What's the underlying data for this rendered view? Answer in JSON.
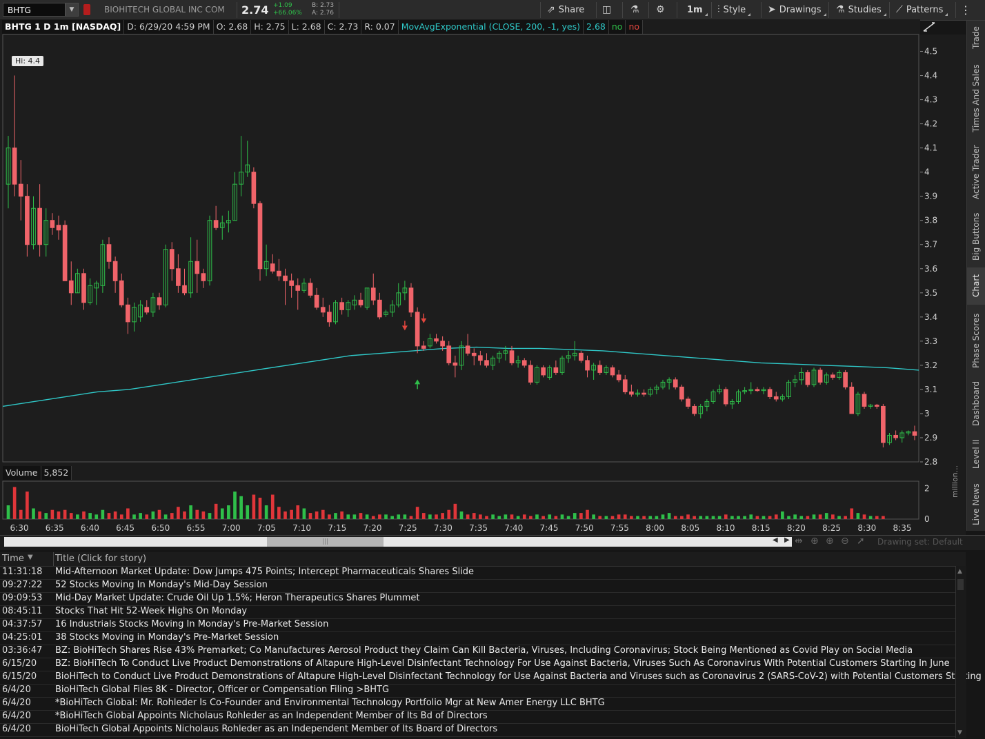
{
  "toolbar": {
    "symbol": "BHTG",
    "company": "BIOHITECH GLOBAL INC COM",
    "last": "2.74",
    "net_change": "+1.09",
    "pct_change": "+66.06%",
    "bid": "B: 2.73",
    "ask": "A: 2.76",
    "share": "Share",
    "timeframe": "1m",
    "style": "Style",
    "drawings": "Drawings",
    "studies": "Studies",
    "patterns": "Patterns"
  },
  "chart_header": {
    "symbol": "BHTG 1 D 1m [NASDAQ]",
    "date": "D: 6/29/20 4:59 PM",
    "open": "O: 2.68",
    "high": "H: 2.75",
    "low": "L: 2.68",
    "close": "C: 2.73",
    "range": "R: 0.07",
    "study": "MovAvgExponential (CLOSE, 200, -1, yes)",
    "study_value": "2.68",
    "flag1": "no",
    "flag2": "no",
    "hi_label": "Hi: 4.4"
  },
  "volume_header": {
    "label": "Volume",
    "value": "5,852",
    "unit": "million...",
    "ticks": [
      "2",
      "0"
    ]
  },
  "side_tabs": [
    "Trade",
    "Times And Sales",
    "Active Trader",
    "Big Buttons",
    "Chart",
    "Phase Scores",
    "Dashboard",
    "Level II",
    "Live News"
  ],
  "scroll": {
    "drawing_set": "Drawing set: Default"
  },
  "news": {
    "col_time": "Time",
    "col_title": "Title (Click for story)",
    "rows": [
      {
        "time": "11:31:18",
        "title": "Mid-Afternoon Market Update: Dow Jumps 475 Points; Intercept Pharmaceuticals Shares Slide"
      },
      {
        "time": "09:27:22",
        "title": "52 Stocks Moving In Monday's Mid-Day Session"
      },
      {
        "time": "09:09:53",
        "title": "Mid-Day Market Update: Crude Oil Up 1.5%; Heron Therapeutics Shares Plummet"
      },
      {
        "time": "08:45:11",
        "title": "Stocks That Hit 52-Week Highs On Monday"
      },
      {
        "time": "04:37:57",
        "title": "16 Industrials Stocks Moving In Monday's Pre-Market Session"
      },
      {
        "time": "04:25:01",
        "title": "38 Stocks Moving in Monday's Pre-Market Session"
      },
      {
        "time": "03:36:47",
        "title": "BZ: BioHiTech Shares Rise 43% Premarket; Co Manufactures Aerosol Product they Claim Can Kill Bacteria, Viruses, Including Coronavirus; Stock Being Mentioned as Covid Play on Social Media"
      },
      {
        "time": "6/15/20",
        "title": "BZ: BioHiTech To Conduct Live Product Demonstrations of Altapure High-Level Disinfectant Technology For Use Against Bacteria, Viruses Such As Coronavirus With Potential Customers Starting In June"
      },
      {
        "time": "6/15/20",
        "title": "BioHiTech to Conduct Live Product Demonstrations of Altapure High-Level Disinfectant Technology for Use Against Bacteria and Viruses such as Coronavirus 2 (SARS-CoV-2) with Potential Customers Starting in June"
      },
      {
        "time": "6/4/20",
        "title": "BioHiTech Global Files 8K - Director, Officer or Compensation Filing >BHTG"
      },
      {
        "time": "6/4/20",
        "title": "*BioHiTech Global: Mr. Rohleder Is Co-Founder and Environmental Technology Portfolio Mgr at New Amer Energy LLC  BHTG"
      },
      {
        "time": "6/4/20",
        "title": "*BioHiTech Global Appoints Nicholaus Rohleder as an Independent Member of Its Bd of Directors"
      },
      {
        "time": "6/4/20",
        "title": "BioHiTech Global Appoints Nicholaus Rohleder as an Independent Member of Its Board of Directors"
      }
    ]
  },
  "colors": {
    "up": "#2fbf4a",
    "down": "#f0646a",
    "ema": "#2fc8c8",
    "volume_up": "#2fbf4a",
    "volume_down": "#e0363a"
  },
  "chart_data": {
    "type": "candlestick",
    "interval": "1m",
    "x_ticks": [
      "6:30",
      "6:35",
      "6:40",
      "6:45",
      "6:50",
      "6:55",
      "7:00",
      "7:05",
      "7:10",
      "7:15",
      "7:20",
      "7:25",
      "7:30",
      "7:35",
      "7:40",
      "7:45",
      "7:50",
      "7:55",
      "8:00",
      "8:05",
      "8:10",
      "8:15",
      "8:20",
      "8:25",
      "8:30",
      "8:35"
    ],
    "y_ticks": [
      4.5,
      4.4,
      4.3,
      4.2,
      4.1,
      4,
      3.9,
      3.8,
      3.7,
      3.6,
      3.5,
      3.4,
      3.3,
      3.2,
      3.1,
      3,
      2.9,
      2.8
    ],
    "ylim": [
      2.8,
      4.57
    ],
    "high_marker": 4.4,
    "ohlc": [
      [
        3.95,
        4.15,
        3.85,
        4.1
      ],
      [
        4.1,
        4.4,
        3.9,
        3.95
      ],
      [
        3.95,
        4.05,
        3.8,
        3.9
      ],
      [
        3.9,
        3.95,
        3.65,
        3.7
      ],
      [
        3.7,
        3.9,
        3.68,
        3.85
      ],
      [
        3.85,
        3.95,
        3.65,
        3.7
      ],
      [
        3.7,
        3.85,
        3.65,
        3.8
      ],
      [
        3.8,
        3.83,
        3.74,
        3.77
      ],
      [
        3.78,
        3.82,
        3.72,
        3.76
      ],
      [
        3.78,
        3.8,
        3.55,
        3.55
      ],
      [
        3.55,
        3.63,
        3.45,
        3.5
      ],
      [
        3.5,
        3.6,
        3.5,
        3.58
      ],
      [
        3.58,
        3.6,
        3.43,
        3.46
      ],
      [
        3.46,
        3.56,
        3.45,
        3.53
      ],
      [
        3.52,
        3.55,
        3.45,
        3.54
      ],
      [
        3.53,
        3.72,
        3.5,
        3.7
      ],
      [
        3.7,
        3.73,
        3.6,
        3.63
      ],
      [
        3.63,
        3.65,
        3.5,
        3.55
      ],
      [
        3.55,
        3.58,
        3.44,
        3.45
      ],
      [
        3.45,
        3.48,
        3.33,
        3.38
      ],
      [
        3.38,
        3.46,
        3.34,
        3.44
      ],
      [
        3.4,
        3.47,
        3.38,
        3.45
      ],
      [
        3.44,
        3.47,
        3.41,
        3.42
      ],
      [
        3.42,
        3.5,
        3.4,
        3.48
      ],
      [
        3.48,
        3.5,
        3.43,
        3.45
      ],
      [
        3.45,
        3.7,
        3.44,
        3.68
      ],
      [
        3.68,
        3.71,
        3.55,
        3.6
      ],
      [
        3.6,
        3.66,
        3.5,
        3.53
      ],
      [
        3.53,
        3.6,
        3.49,
        3.5
      ],
      [
        3.5,
        3.73,
        3.48,
        3.63
      ],
      [
        3.63,
        3.72,
        3.5,
        3.58
      ],
      [
        3.58,
        3.6,
        3.52,
        3.55
      ],
      [
        3.55,
        3.82,
        3.53,
        3.8
      ],
      [
        3.8,
        3.86,
        3.76,
        3.77
      ],
      [
        3.77,
        3.82,
        3.72,
        3.79
      ],
      [
        3.79,
        3.84,
        3.75,
        3.8
      ],
      [
        3.8,
        4.0,
        3.8,
        3.95
      ],
      [
        3.95,
        4.15,
        3.9,
        4.0
      ],
      [
        4.0,
        4.13,
        3.98,
        4.03
      ],
      [
        4.0,
        4.02,
        3.85,
        3.87
      ],
      [
        3.87,
        3.88,
        3.55,
        3.6
      ],
      [
        3.6,
        3.7,
        3.57,
        3.63
      ],
      [
        3.62,
        3.66,
        3.58,
        3.59
      ],
      [
        3.59,
        3.64,
        3.55,
        3.57
      ],
      [
        3.57,
        3.6,
        3.45,
        3.55
      ],
      [
        3.55,
        3.58,
        3.48,
        3.53
      ],
      [
        3.53,
        3.56,
        3.43,
        3.51
      ],
      [
        3.51,
        3.56,
        3.5,
        3.54
      ],
      [
        3.54,
        3.56,
        3.48,
        3.49
      ],
      [
        3.49,
        3.52,
        3.43,
        3.44
      ],
      [
        3.44,
        3.48,
        3.4,
        3.42
      ],
      [
        3.42,
        3.45,
        3.36,
        3.38
      ],
      [
        3.38,
        3.47,
        3.37,
        3.46
      ],
      [
        3.46,
        3.48,
        3.41,
        3.43
      ],
      [
        3.43,
        3.47,
        3.4,
        3.46
      ],
      [
        3.45,
        3.49,
        3.43,
        3.47
      ],
      [
        3.47,
        3.5,
        3.44,
        3.45
      ],
      [
        3.44,
        3.52,
        3.43,
        3.52
      ],
      [
        3.52,
        3.58,
        3.45,
        3.47
      ],
      [
        3.47,
        3.5,
        3.39,
        3.4
      ],
      [
        3.41,
        3.43,
        3.4,
        3.42
      ],
      [
        3.42,
        3.47,
        3.4,
        3.45
      ],
      [
        3.45,
        3.54,
        3.44,
        3.5
      ],
      [
        3.5,
        3.55,
        3.47,
        3.52
      ],
      [
        3.52,
        3.54,
        3.4,
        3.42
      ],
      [
        3.42,
        3.44,
        3.25,
        3.28
      ],
      [
        3.28,
        3.3,
        3.26,
        3.27
      ],
      [
        3.28,
        3.33,
        3.27,
        3.31
      ],
      [
        3.31,
        3.33,
        3.29,
        3.3
      ],
      [
        3.3,
        3.32,
        3.26,
        3.28
      ],
      [
        3.28,
        3.3,
        3.2,
        3.21
      ],
      [
        3.21,
        3.24,
        3.15,
        3.2
      ],
      [
        3.2,
        3.3,
        3.18,
        3.28
      ],
      [
        3.28,
        3.33,
        3.24,
        3.25
      ],
      [
        3.25,
        3.27,
        3.2,
        3.24
      ],
      [
        3.24,
        3.26,
        3.2,
        3.22
      ],
      [
        3.22,
        3.25,
        3.19,
        3.2
      ],
      [
        3.2,
        3.24,
        3.18,
        3.23
      ],
      [
        3.23,
        3.26,
        3.21,
        3.25
      ],
      [
        3.25,
        3.28,
        3.22,
        3.26
      ],
      [
        3.26,
        3.28,
        3.2,
        3.21
      ],
      [
        3.21,
        3.24,
        3.19,
        3.22
      ],
      [
        3.22,
        3.23,
        3.19,
        3.2
      ],
      [
        3.2,
        3.22,
        3.12,
        3.13
      ],
      [
        3.13,
        3.2,
        3.12,
        3.19
      ],
      [
        3.19,
        3.2,
        3.15,
        3.16
      ],
      [
        3.15,
        3.2,
        3.14,
        3.19
      ],
      [
        3.19,
        3.22,
        3.16,
        3.17
      ],
      [
        3.17,
        3.24,
        3.16,
        3.23
      ],
      [
        3.23,
        3.26,
        3.21,
        3.24
      ],
      [
        3.24,
        3.3,
        3.22,
        3.25
      ],
      [
        3.25,
        3.26,
        3.21,
        3.22
      ],
      [
        3.22,
        3.24,
        3.15,
        3.18
      ],
      [
        3.18,
        3.21,
        3.14,
        3.2
      ],
      [
        3.2,
        3.22,
        3.16,
        3.17
      ],
      [
        3.17,
        3.2,
        3.16,
        3.19
      ],
      [
        3.19,
        3.2,
        3.15,
        3.16
      ],
      [
        3.16,
        3.18,
        3.13,
        3.14
      ],
      [
        3.14,
        3.16,
        3.08,
        3.09
      ],
      [
        3.09,
        3.12,
        3.07,
        3.08
      ],
      [
        3.08,
        3.1,
        3.07,
        3.085
      ],
      [
        3.085,
        3.1,
        3.07,
        3.08
      ],
      [
        3.08,
        3.11,
        3.07,
        3.1
      ],
      [
        3.1,
        3.12,
        3.08,
        3.11
      ],
      [
        3.11,
        3.14,
        3.1,
        3.13
      ],
      [
        3.13,
        3.15,
        3.1,
        3.14
      ],
      [
        3.14,
        3.15,
        3.1,
        3.11
      ],
      [
        3.11,
        3.12,
        3.05,
        3.06
      ],
      [
        3.06,
        3.07,
        3.02,
        3.03
      ],
      [
        3.03,
        3.04,
        2.99,
        3.0
      ],
      [
        3.0,
        3.04,
        2.98,
        3.03
      ],
      [
        3.03,
        3.06,
        3.01,
        3.05
      ],
      [
        3.05,
        3.1,
        3.04,
        3.09
      ],
      [
        3.09,
        3.12,
        3.08,
        3.1
      ],
      [
        3.1,
        3.11,
        3.03,
        3.04
      ],
      [
        3.04,
        3.06,
        3.02,
        3.05
      ],
      [
        3.05,
        3.1,
        3.04,
        3.09
      ],
      [
        3.09,
        3.11,
        3.08,
        3.095
      ],
      [
        3.095,
        3.13,
        3.08,
        3.1
      ],
      [
        3.1,
        3.11,
        3.09,
        3.095
      ],
      [
        3.095,
        3.11,
        3.08,
        3.1
      ],
      [
        3.1,
        3.11,
        3.06,
        3.07
      ],
      [
        3.07,
        3.09,
        3.05,
        3.06
      ],
      [
        3.06,
        3.08,
        3.05,
        3.07
      ],
      [
        3.07,
        3.14,
        3.06,
        3.13
      ],
      [
        3.13,
        3.16,
        3.11,
        3.14
      ],
      [
        3.14,
        3.19,
        3.12,
        3.17
      ],
      [
        3.17,
        3.18,
        3.11,
        3.12
      ],
      [
        3.12,
        3.19,
        3.11,
        3.18
      ],
      [
        3.18,
        3.19,
        3.12,
        3.13
      ],
      [
        3.13,
        3.17,
        3.12,
        3.16
      ],
      [
        3.16,
        3.17,
        3.14,
        3.15
      ],
      [
        3.15,
        3.18,
        3.14,
        3.17
      ],
      [
        3.17,
        3.18,
        3.1,
        3.11
      ],
      [
        3.11,
        3.13,
        3.0,
        3.0
      ],
      [
        3.0,
        3.09,
        2.99,
        3.08
      ],
      [
        3.08,
        3.09,
        3.02,
        3.03
      ],
      [
        3.03,
        3.04,
        3.02,
        3.035
      ],
      [
        3.035,
        3.04,
        3.02,
        3.03
      ],
      [
        3.03,
        3.04,
        2.86,
        2.88
      ],
      [
        2.88,
        2.92,
        2.87,
        2.91
      ],
      [
        2.91,
        2.93,
        2.89,
        2.9
      ],
      [
        2.9,
        2.93,
        2.88,
        2.92
      ],
      [
        2.92,
        2.93,
        2.91,
        2.925
      ],
      [
        2.925,
        2.95,
        2.89,
        2.91
      ]
    ],
    "ema": [
      3.03,
      3.05,
      3.07,
      3.09,
      3.1,
      3.12,
      3.14,
      3.16,
      3.18,
      3.2,
      3.22,
      3.24,
      3.25,
      3.26,
      3.27,
      3.275,
      3.27,
      3.27,
      3.265,
      3.26,
      3.25,
      3.24,
      3.23,
      3.22,
      3.21,
      3.205,
      3.2,
      3.195,
      3.19,
      3.18
    ],
    "volume": [
      0.9,
      2.1,
      0.6,
      1.8,
      0.7,
      0.5,
      0.4,
      0.6,
      0.5,
      0.6,
      0.4,
      0.3,
      0.5,
      0.4,
      0.3,
      0.6,
      0.4,
      0.5,
      0.3,
      0.7,
      0.3,
      0.4,
      0.3,
      0.5,
      0.6,
      0.3,
      0.4,
      0.8,
      0.5,
      0.9,
      0.6,
      0.5,
      0.4,
      1.0,
      0.7,
      0.9,
      1.8,
      1.5,
      0.9,
      1.6,
      1.4,
      0.9,
      1.6,
      0.8,
      0.5,
      0.6,
      0.9,
      0.7,
      0.4,
      0.5,
      0.6,
      0.3,
      0.4,
      0.5,
      0.3,
      0.3,
      0.4,
      0.3,
      0.2,
      0.3,
      0.3,
      0.2,
      0.3,
      0.3,
      0.2,
      0.8,
      0.4,
      0.3,
      0.3,
      0.4,
      0.6,
      1.0,
      0.5,
      0.3,
      0.4,
      0.3,
      0.2,
      0.3,
      0.2,
      0.3,
      0.3,
      0.2,
      0.3,
      0.2,
      0.3,
      0.2,
      0.3,
      0.2,
      0.3,
      0.2,
      0.4,
      0.4,
      0.6,
      0.3,
      0.2,
      0.2,
      0.2,
      0.3,
      0.3,
      0.2,
      0.2,
      0.2,
      0.2,
      0.2,
      0.3,
      0.4,
      0.2,
      0.2,
      0.3,
      0.2,
      0.2,
      0.2,
      0.2,
      0.2,
      0.3,
      0.2,
      0.2,
      0.2,
      0.3,
      0.2,
      0.2,
      0.2,
      0.3,
      0.5,
      0.2,
      0.3,
      0.2,
      0.2,
      0.3,
      0.3,
      0.4,
      0.3,
      0.2,
      0.2,
      0.7,
      0.4,
      0.3,
      0.2,
      0.2,
      0.2
    ],
    "markers": [
      {
        "type": "down-arrow",
        "at": 63,
        "price": 3.35
      },
      {
        "type": "down-arrow",
        "at": 66,
        "price": 3.38
      },
      {
        "type": "up-arrow",
        "at": 65,
        "price": 3.13
      }
    ]
  }
}
